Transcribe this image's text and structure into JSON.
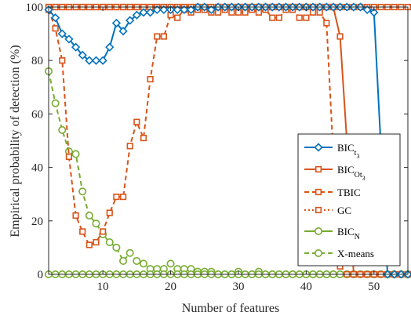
{
  "chart_data": {
    "type": "line",
    "xlabel": "Number of features",
    "ylabel": "Empirical probability of detection (%)",
    "xlim": [
      2,
      55
    ],
    "ylim": [
      0,
      100
    ],
    "xticks": [
      10,
      20,
      30,
      40,
      50
    ],
    "yticks": [
      0,
      20,
      40,
      60,
      80,
      100
    ],
    "grid": false,
    "legend_position": "lower-right",
    "series": [
      {
        "name": "BIC_t3",
        "name_main": "BIC",
        "name_sub": "t",
        "name_subsub": "3",
        "color": "#0072BD",
        "dash": "solid",
        "marker": "diamond",
        "x": [
          2,
          3,
          4,
          5,
          6,
          7,
          8,
          9,
          10,
          11,
          12,
          13,
          14,
          15,
          16,
          17,
          18,
          19,
          20,
          21,
          22,
          23,
          24,
          25,
          26,
          27,
          28,
          29,
          30,
          31,
          32,
          33,
          34,
          35,
          36,
          37,
          38,
          39,
          40,
          41,
          42,
          43,
          44,
          45,
          46,
          47,
          48,
          49,
          50,
          51,
          52,
          53,
          54,
          55
        ],
        "y": [
          99,
          96,
          90,
          88,
          85,
          82,
          80,
          80,
          80,
          85,
          94,
          91,
          95,
          97,
          98,
          98,
          99,
          99,
          99,
          99,
          99,
          99,
          100,
          100,
          99,
          100,
          100,
          100,
          100,
          100,
          100,
          100,
          100,
          100,
          100,
          100,
          100,
          100,
          100,
          100,
          100,
          100,
          100,
          100,
          100,
          100,
          100,
          99,
          98,
          49,
          0,
          0,
          0,
          0
        ]
      },
      {
        "name": "BIC_Ot3",
        "name_main": "BIC",
        "name_sub": "Ot",
        "name_subsub": "3",
        "color": "#D95319",
        "dash": "solid",
        "marker": "square",
        "x": [
          2,
          3,
          4,
          5,
          6,
          7,
          8,
          9,
          10,
          11,
          12,
          13,
          14,
          15,
          16,
          17,
          18,
          19,
          20,
          21,
          22,
          23,
          24,
          25,
          26,
          27,
          28,
          29,
          30,
          31,
          32,
          33,
          34,
          35,
          36,
          37,
          38,
          39,
          40,
          41,
          42,
          43,
          44,
          45,
          46,
          47,
          48,
          49,
          50,
          51,
          52,
          53,
          54,
          55
        ],
        "y": [
          100,
          100,
          100,
          100,
          100,
          100,
          100,
          100,
          100,
          100,
          100,
          100,
          100,
          100,
          100,
          100,
          100,
          100,
          100,
          100,
          100,
          100,
          100,
          100,
          100,
          100,
          100,
          100,
          100,
          100,
          100,
          100,
          100,
          100,
          100,
          100,
          100,
          100,
          100,
          100,
          100,
          100,
          100,
          89,
          50,
          0,
          0,
          0,
          0,
          0,
          0,
          0,
          0,
          0
        ]
      },
      {
        "name": "TBIC",
        "name_main": "TBIC",
        "color": "#D95319",
        "dash": "dashed",
        "marker": "square",
        "x": [
          2,
          3,
          4,
          5,
          6,
          7,
          8,
          9,
          10,
          11,
          12,
          13,
          14,
          15,
          16,
          17,
          18,
          19,
          20,
          21,
          22,
          23,
          24,
          25,
          26,
          27,
          28,
          29,
          30,
          31,
          32,
          33,
          34,
          35,
          36,
          37,
          38,
          39,
          40,
          41,
          42,
          43,
          44,
          45,
          46,
          47,
          48,
          49,
          50,
          51,
          52,
          53,
          54,
          55
        ],
        "y": [
          99,
          92,
          80,
          44,
          22,
          16,
          11,
          12,
          16,
          23,
          29,
          29,
          48,
          57,
          51,
          73,
          89,
          89,
          97,
          96,
          99,
          98,
          99,
          99,
          98,
          98,
          99,
          98,
          98,
          98,
          99,
          98,
          99,
          96,
          96,
          99,
          99,
          96,
          96,
          98,
          98,
          94,
          45,
          3,
          0,
          0,
          0,
          0,
          0,
          0,
          0,
          0,
          0,
          0
        ]
      },
      {
        "name": "GC",
        "name_main": "GC",
        "color": "#D95319",
        "dash": "dotted",
        "marker": "square",
        "x": [
          2,
          3,
          4,
          5,
          6,
          7,
          8,
          9,
          10,
          11,
          12,
          13,
          14,
          15,
          16,
          17,
          18,
          19,
          20,
          21,
          22,
          23,
          24,
          25,
          26,
          27,
          28,
          29,
          30,
          31,
          32,
          33,
          34,
          35,
          36,
          37,
          38,
          39,
          40,
          41,
          42,
          43,
          44,
          45,
          46,
          47,
          48,
          49,
          50,
          51,
          52,
          53,
          54,
          55
        ],
        "y": [
          100,
          100,
          100,
          100,
          100,
          100,
          100,
          100,
          100,
          100,
          100,
          100,
          100,
          100,
          100,
          100,
          100,
          100,
          100,
          100,
          100,
          100,
          100,
          100,
          100,
          100,
          100,
          100,
          100,
          100,
          100,
          100,
          100,
          100,
          100,
          100,
          100,
          100,
          100,
          100,
          100,
          100,
          100,
          100,
          100,
          100,
          100,
          100,
          100,
          100,
          100,
          100,
          100,
          100
        ]
      },
      {
        "name": "BIC_N",
        "name_main": "BIC",
        "name_sub": "N",
        "color": "#77AC30",
        "dash": "solid",
        "marker": "circle",
        "x": [
          2,
          3,
          4,
          5,
          6,
          7,
          8,
          9,
          10,
          11,
          12,
          13,
          14,
          15,
          16,
          17,
          18,
          19,
          20,
          21,
          22,
          23,
          24,
          25,
          26,
          27,
          28,
          29,
          30,
          31,
          32,
          33,
          34,
          35,
          36,
          37,
          38,
          39,
          40,
          41,
          42,
          43,
          44,
          45,
          46,
          47,
          48,
          49,
          50,
          51,
          52,
          53,
          54,
          55
        ],
        "y": [
          0,
          0,
          0,
          0,
          0,
          0,
          0,
          0,
          0,
          0,
          0,
          0,
          0,
          0,
          0,
          0,
          0,
          0,
          0,
          0,
          0,
          0,
          0,
          0,
          0,
          0,
          0,
          0,
          0,
          0,
          0,
          0,
          0,
          0,
          0,
          0,
          0,
          0,
          0,
          0,
          0,
          0,
          0,
          0,
          0,
          0,
          0,
          0,
          0,
          0,
          0,
          0,
          0,
          0
        ]
      },
      {
        "name": "X-means",
        "name_main": "X-means",
        "color": "#77AC30",
        "dash": "dashed",
        "marker": "circle",
        "x": [
          2,
          3,
          4,
          5,
          6,
          7,
          8,
          9,
          10,
          11,
          12,
          13,
          14,
          15,
          16,
          17,
          18,
          19,
          20,
          21,
          22,
          23,
          24,
          25,
          26,
          27,
          28,
          29,
          30,
          31,
          32,
          33,
          34,
          35,
          36,
          37,
          38,
          39,
          40,
          41,
          42,
          43,
          44,
          45,
          46,
          47,
          48,
          49,
          50,
          51,
          52,
          53,
          54,
          55
        ],
        "y": [
          76,
          64,
          54,
          46,
          45,
          31,
          22,
          19,
          15,
          12,
          10,
          5,
          8,
          5,
          4,
          2,
          2,
          2,
          4,
          2,
          2,
          2,
          1,
          1,
          1,
          0,
          0,
          0,
          1,
          0,
          0,
          1,
          0,
          0,
          0,
          0,
          0,
          0,
          0,
          0,
          0,
          0,
          0,
          0,
          0,
          0,
          0,
          0,
          0,
          0,
          0,
          0,
          0,
          0
        ]
      }
    ]
  }
}
